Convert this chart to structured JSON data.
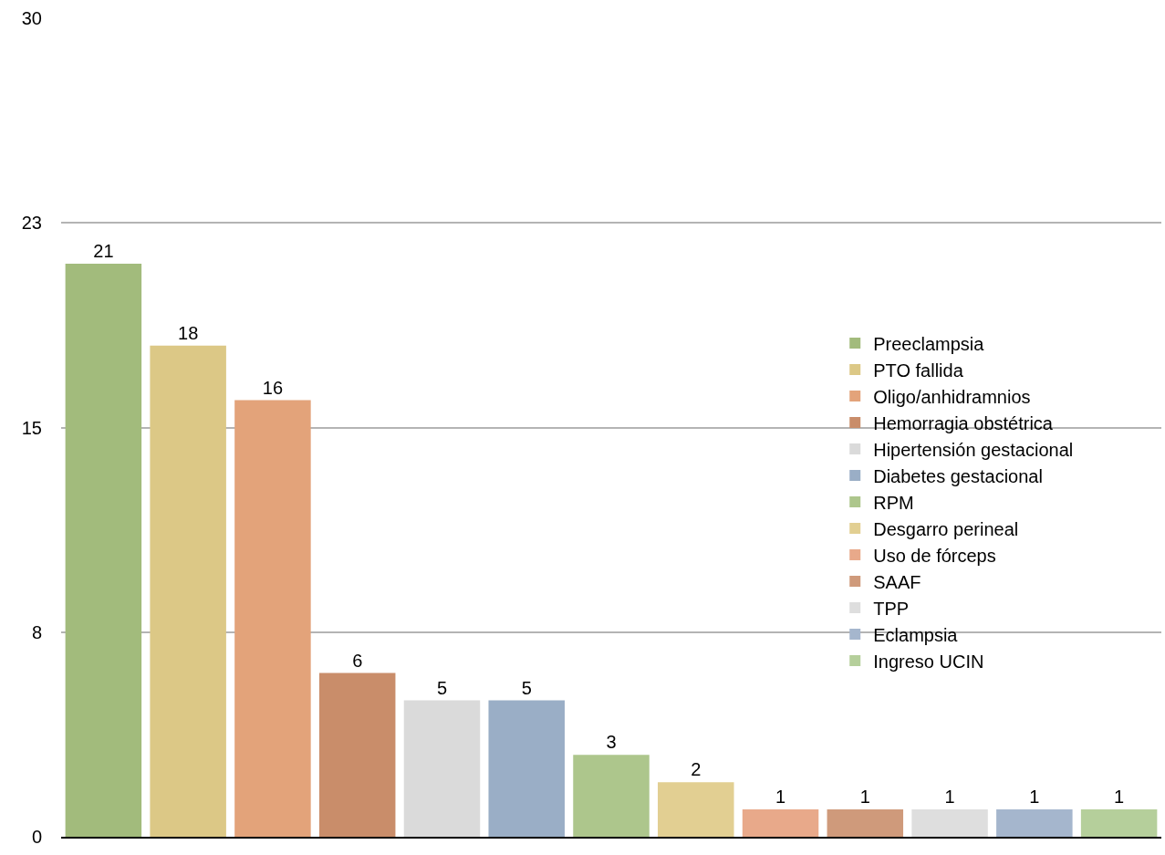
{
  "chart_data": {
    "type": "bar",
    "categories": [
      null,
      null,
      null,
      null,
      null,
      null,
      null,
      null,
      null,
      null,
      null,
      null,
      null
    ],
    "series": [
      {
        "name": "Preeclampsia",
        "color": "#a2bb7c",
        "values": [
          21,
          null,
          null,
          null,
          null,
          null,
          null,
          null,
          null,
          null,
          null,
          null,
          null
        ]
      },
      {
        "name": "PTO fallida",
        "color": "#dcc886",
        "values": [
          null,
          18,
          null,
          null,
          null,
          null,
          null,
          null,
          null,
          null,
          null,
          null,
          null
        ]
      },
      {
        "name": "Oligo/anhidramnios",
        "color": "#e3a37a",
        "values": [
          null,
          null,
          16,
          null,
          null,
          null,
          null,
          null,
          null,
          null,
          null,
          null,
          null
        ]
      },
      {
        "name": "Hemorragia obstétrica",
        "color": "#c98d6a",
        "values": [
          null,
          null,
          null,
          6,
          null,
          null,
          null,
          null,
          null,
          null,
          null,
          null,
          null
        ]
      },
      {
        "name": "Hipertensión gestacional",
        "color": "#dadada",
        "values": [
          null,
          null,
          null,
          null,
          5,
          null,
          null,
          null,
          null,
          null,
          null,
          null,
          null
        ]
      },
      {
        "name": "Diabetes gestacional",
        "color": "#9aaec6",
        "values": [
          null,
          null,
          null,
          null,
          null,
          5,
          null,
          null,
          null,
          null,
          null,
          null,
          null
        ]
      },
      {
        "name": "RPM",
        "color": "#adc68c",
        "values": [
          null,
          null,
          null,
          null,
          null,
          null,
          3,
          null,
          null,
          null,
          null,
          null,
          null
        ]
      },
      {
        "name": "Desgarro perineal",
        "color": "#e2cf92",
        "values": [
          null,
          null,
          null,
          null,
          null,
          null,
          null,
          2,
          null,
          null,
          null,
          null,
          null
        ]
      },
      {
        "name": "Uso de fórceps",
        "color": "#e8a98a",
        "values": [
          null,
          null,
          null,
          null,
          null,
          null,
          null,
          null,
          1,
          null,
          null,
          null,
          null
        ]
      },
      {
        "name": "SAAF",
        "color": "#cf9a7b",
        "values": [
          null,
          null,
          null,
          null,
          null,
          null,
          null,
          null,
          null,
          1,
          null,
          null,
          null
        ]
      },
      {
        "name": "TPP",
        "color": "#dedede",
        "values": [
          null,
          null,
          null,
          null,
          null,
          null,
          null,
          null,
          null,
          null,
          1,
          null,
          null
        ]
      },
      {
        "name": "Eclampsia",
        "color": "#a5b6cd",
        "values": [
          null,
          null,
          null,
          null,
          null,
          null,
          null,
          null,
          null,
          null,
          null,
          1,
          null
        ]
      },
      {
        "name": "Ingreso UCIN",
        "color": "#b5cf9b",
        "values": [
          null,
          null,
          null,
          null,
          null,
          null,
          null,
          null,
          null,
          null,
          null,
          null,
          1
        ]
      }
    ],
    "ylim": [
      0,
      30
    ],
    "yticks": [
      0,
      {
        "value": 7.5,
        "label": "8"
      },
      15,
      {
        "value": 22.5,
        "label": "23"
      },
      30
    ],
    "grid": "y",
    "legend": "right",
    "tick_labels": "y",
    "data_labels": true
  }
}
